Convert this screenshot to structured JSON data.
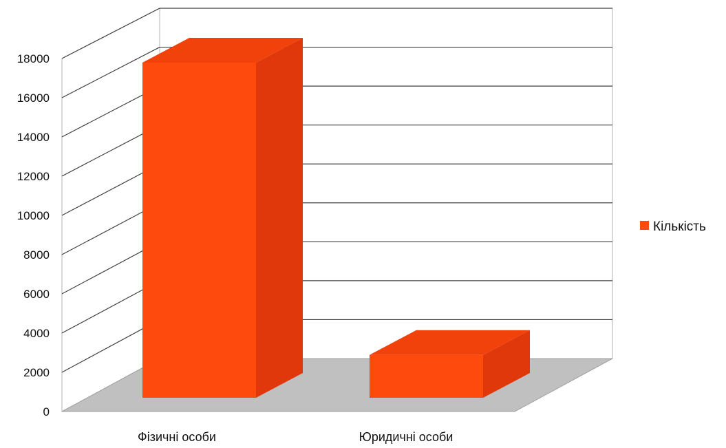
{
  "chart_data": {
    "type": "bar",
    "style": "3d-column",
    "categories": [
      "Фізичні особи",
      "Юридичні особи"
    ],
    "series": [
      {
        "name": "Кількість",
        "values": [
          17200,
          2200
        ],
        "color": "#ff4a0e",
        "side_color": "#e0380a",
        "top_color": "#f1420c"
      }
    ],
    "ylim": [
      0,
      18000
    ],
    "yticks": [
      0,
      2000,
      4000,
      6000,
      8000,
      10000,
      12000,
      14000,
      16000,
      18000
    ],
    "grid": true,
    "legend_position": "right",
    "floor_color": "#c0c0c0"
  }
}
